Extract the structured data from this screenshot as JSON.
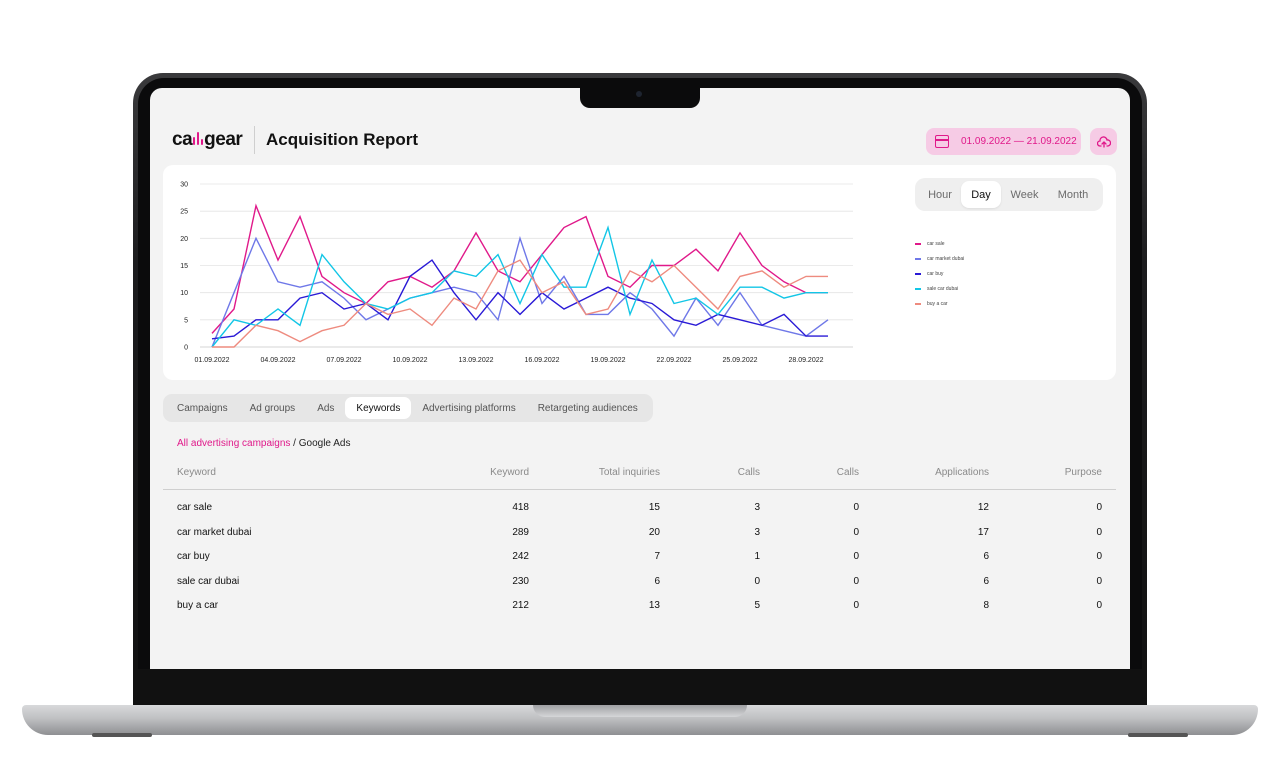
{
  "header": {
    "logo_left": "ca",
    "logo_right": "gear",
    "title": "Acquisition Report",
    "date_range": "01.09.2022 — 21.09.2022",
    "upload_icon": "upload-cloud-icon"
  },
  "colors": {
    "accent": "#e0198a",
    "accent_light": "#f6cbe5"
  },
  "period": {
    "options": [
      "Hour",
      "Day",
      "Week",
      "Month"
    ],
    "selected": "Day"
  },
  "chart_data": {
    "type": "line",
    "title": "",
    "xlabel": "",
    "ylabel": "",
    "ylim": [
      0,
      30
    ],
    "yticks": [
      0,
      5,
      10,
      15,
      20,
      25,
      30
    ],
    "xtick_labels": [
      "01.09.2022",
      "04.09.2022",
      "07.09.2022",
      "10.09.2022",
      "13.09.2022",
      "16.09.2022",
      "19.09.2022",
      "22.09.2022",
      "25.09.2022",
      "28.09.2022"
    ],
    "grid": true,
    "legend_position": "right",
    "x": [
      "01.09.2022",
      "02.09.2022",
      "03.09.2022",
      "04.09.2022",
      "05.09.2022",
      "06.09.2022",
      "07.09.2022",
      "08.09.2022",
      "09.09.2022",
      "10.09.2022",
      "11.09.2022",
      "12.09.2022",
      "13.09.2022",
      "14.09.2022",
      "15.09.2022",
      "16.09.2022",
      "17.09.2022",
      "18.09.2022",
      "19.09.2022",
      "20.09.2022",
      "21.09.2022",
      "22.09.2022",
      "23.09.2022",
      "24.09.2022",
      "25.09.2022",
      "26.09.2022",
      "27.09.2022",
      "28.09.2022",
      "29.09.2022"
    ],
    "series": [
      {
        "name": "car sale",
        "color": "#e0198a",
        "values": [
          2.5,
          7,
          26,
          16,
          24,
          13,
          10,
          8,
          12,
          13,
          11,
          14,
          21,
          14,
          12,
          17,
          22,
          24,
          13,
          11,
          15,
          15,
          18,
          14,
          21,
          15,
          12,
          10,
          10
        ]
      },
      {
        "name": "car market dubai",
        "color": "#6f78e8",
        "values": [
          0,
          10,
          20,
          12,
          11,
          12,
          9,
          5,
          7,
          9,
          10,
          11,
          10,
          5,
          20,
          8,
          13,
          6,
          6,
          10,
          7,
          2,
          9,
          4,
          10,
          4,
          3,
          2,
          5
        ]
      },
      {
        "name": "car buy",
        "color": "#2a1ad6",
        "values": [
          1.5,
          2,
          5,
          5,
          9,
          10,
          7,
          8,
          5,
          13,
          16,
          10,
          5,
          10,
          6,
          10,
          7,
          9,
          11,
          9,
          8,
          5,
          4,
          6,
          5,
          4,
          6,
          2,
          2
        ]
      },
      {
        "name": "sale car dubai",
        "color": "#12c6e6",
        "values": [
          0,
          5,
          4,
          7,
          4,
          17,
          12,
          8,
          7,
          9,
          10,
          14,
          13,
          17,
          8,
          17,
          11,
          11,
          22,
          6,
          16,
          8,
          9,
          6,
          11,
          11,
          9,
          10,
          10
        ]
      },
      {
        "name": "buy a car",
        "color": "#ee8b7f",
        "values": [
          0,
          0,
          4,
          3,
          1,
          3,
          4,
          8,
          6,
          7,
          4,
          9,
          7,
          14,
          16,
          10,
          12,
          6,
          7,
          14,
          12,
          15,
          11,
          7,
          13,
          14,
          11,
          13,
          13
        ]
      }
    ]
  },
  "tabs": {
    "items": [
      "Campaigns",
      "Ad groups",
      "Ads",
      "Keywords",
      "Advertising platforms",
      "Retargeting audiences"
    ],
    "selected": "Keywords"
  },
  "breadcrumb": {
    "link": "All advertising campaigns",
    "sep": " / ",
    "current": "Google Ads"
  },
  "table": {
    "columns": [
      "Keyword",
      "Keyword",
      "Total inquiries",
      "Calls",
      "Calls",
      "Applications",
      "Purpose"
    ],
    "rows": [
      [
        "car sale",
        "418",
        "15",
        "3",
        "0",
        "12",
        "0"
      ],
      [
        "car market dubai",
        "289",
        "20",
        "3",
        "0",
        "17",
        "0"
      ],
      [
        "car buy",
        "242",
        "7",
        "1",
        "0",
        "6",
        "0"
      ],
      [
        "sale car dubai",
        "230",
        "6",
        "0",
        "0",
        "6",
        "0"
      ],
      [
        "buy a car",
        "212",
        "13",
        "5",
        "0",
        "8",
        "0"
      ]
    ]
  }
}
